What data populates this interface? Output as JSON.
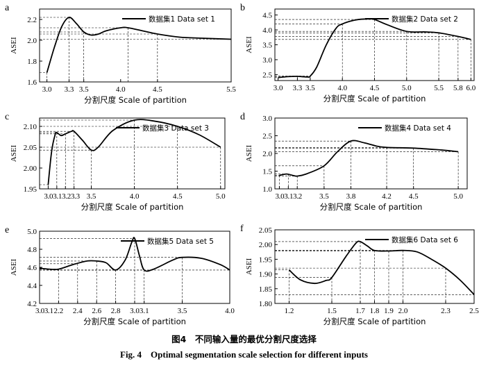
{
  "figure": {
    "caption_cn": "图4　不同输入量的最优分割尺度选择",
    "caption_en": "Fig. 4　Optimal segmentation scale selection for different inputs"
  },
  "chart_data": [
    {
      "panel_label": "a",
      "type": "line",
      "xlabel": "分割尺度 Scale of partition",
      "ylabel": "ASEI",
      "legend": "数据集1 Data set 1",
      "legend_position": "top-right",
      "xlim": [
        2.9,
        5.5
      ],
      "ylim": [
        1.6,
        2.3
      ],
      "xticks": [
        3.0,
        3.3,
        3.5,
        4.0,
        4.5,
        5.5
      ],
      "xtick_labels": [
        "3.0",
        "3.3",
        "3.5",
        "4.0",
        "4.5",
        "5.5"
      ],
      "yticks": [
        1.6,
        1.8,
        2.0,
        2.2
      ],
      "ytick_labels": [
        "1.6",
        "1.8",
        "2.0",
        "2.2"
      ],
      "curve": [
        [
          3.0,
          1.69
        ],
        [
          3.1,
          1.93
        ],
        [
          3.2,
          2.13
        ],
        [
          3.3,
          2.22
        ],
        [
          3.4,
          2.16
        ],
        [
          3.5,
          2.08
        ],
        [
          3.6,
          2.05
        ],
        [
          3.7,
          2.06
        ],
        [
          3.8,
          2.09
        ],
        [
          4.0,
          2.12
        ],
        [
          4.1,
          2.12
        ],
        [
          4.3,
          2.09
        ],
        [
          4.5,
          2.06
        ],
        [
          4.8,
          2.03
        ],
        [
          5.1,
          2.02
        ],
        [
          5.5,
          2.01
        ]
      ],
      "markers": [
        [
          3.0,
          1.69
        ],
        [
          3.3,
          2.22
        ],
        [
          3.5,
          2.08
        ],
        [
          4.1,
          2.12
        ],
        [
          4.5,
          2.06
        ],
        [
          5.5,
          2.01
        ]
      ]
    },
    {
      "panel_label": "b",
      "type": "line",
      "xlabel": "分割尺度 Scale of partition",
      "ylabel": "ASEI",
      "legend": "数据集2 Data set 2",
      "legend_position": "top-right",
      "xlim": [
        2.95,
        6.05
      ],
      "ylim": [
        2.3,
        4.7
      ],
      "xticks": [
        3.0,
        3.3,
        3.5,
        4.0,
        4.5,
        5.0,
        5.5,
        5.8,
        6.0
      ],
      "xtick_labels": [
        "3.0",
        "3.3",
        "3.5",
        "4.0",
        "4.5",
        "5.0",
        "5.5",
        "5.8",
        "6.0"
      ],
      "yticks": [
        2.5,
        3.0,
        3.5,
        4.0,
        4.5
      ],
      "ytick_labels": [
        "2.5",
        "3.0",
        "3.5",
        "4.0",
        "4.5"
      ],
      "curve": [
        [
          3.0,
          2.4
        ],
        [
          3.15,
          2.43
        ],
        [
          3.3,
          2.44
        ],
        [
          3.45,
          2.42
        ],
        [
          3.5,
          2.45
        ],
        [
          3.6,
          2.75
        ],
        [
          3.75,
          3.5
        ],
        [
          3.9,
          4.05
        ],
        [
          4.0,
          4.2
        ],
        [
          4.2,
          4.33
        ],
        [
          4.4,
          4.37
        ],
        [
          4.5,
          4.35
        ],
        [
          4.7,
          4.17
        ],
        [
          5.0,
          3.95
        ],
        [
          5.3,
          3.93
        ],
        [
          5.5,
          3.9
        ],
        [
          5.8,
          3.78
        ],
        [
          6.0,
          3.68
        ]
      ],
      "markers": [
        [
          3.0,
          2.4
        ],
        [
          3.3,
          2.44
        ],
        [
          3.5,
          2.45
        ],
        [
          4.0,
          4.2
        ],
        [
          4.5,
          4.35
        ],
        [
          5.0,
          3.95
        ],
        [
          5.5,
          3.9
        ],
        [
          5.8,
          3.78
        ],
        [
          6.0,
          3.68
        ]
      ]
    },
    {
      "panel_label": "c",
      "type": "line",
      "xlabel": "分割尺度 Scale of partition",
      "ylabel": "ASEI",
      "legend": "数据集3 Data set 3",
      "legend_position": "top-right",
      "xlim": [
        2.9,
        5.05
      ],
      "ylim": [
        1.95,
        2.12
      ],
      "xticks": [
        3.0,
        3.1,
        3.2,
        3.3,
        3.5,
        4.0,
        4.5,
        5.0
      ],
      "xtick_labels": [
        "3.0",
        "3.1",
        "3.2",
        "3.3",
        "3.5",
        "4.0",
        "4.5",
        "5.0"
      ],
      "xtick_text": "3.03.13.23.3",
      "yticks": [
        1.95,
        2.0,
        2.05,
        2.1
      ],
      "ytick_labels": [
        "1.95",
        "2.00",
        "2.05",
        "2.10"
      ],
      "curve": [
        [
          3.0,
          1.96
        ],
        [
          3.04,
          2.04
        ],
        [
          3.08,
          2.08
        ],
        [
          3.1,
          2.085
        ],
        [
          3.15,
          2.078
        ],
        [
          3.2,
          2.082
        ],
        [
          3.27,
          2.088
        ],
        [
          3.3,
          2.088
        ],
        [
          3.4,
          2.066
        ],
        [
          3.5,
          2.043
        ],
        [
          3.58,
          2.05
        ],
        [
          3.75,
          2.09
        ],
        [
          4.0,
          2.115
        ],
        [
          4.25,
          2.112
        ],
        [
          4.5,
          2.1
        ],
        [
          4.75,
          2.08
        ],
        [
          5.0,
          2.05
        ]
      ],
      "markers": [
        [
          3.0,
          1.96
        ],
        [
          3.1,
          2.085
        ],
        [
          3.2,
          2.082
        ],
        [
          3.3,
          2.088
        ],
        [
          3.5,
          2.043
        ],
        [
          4.0,
          2.115
        ],
        [
          4.5,
          2.1
        ],
        [
          5.0,
          2.05
        ]
      ]
    },
    {
      "panel_label": "d",
      "type": "line",
      "xlabel": "分割尺度 Scale of partition",
      "ylabel": "ASEI",
      "legend": "数据集4 Data set 4",
      "legend_position": "top-right",
      "xlim": [
        2.95,
        5.1
      ],
      "ylim": [
        1.0,
        3.0
      ],
      "xticks": [
        3.0,
        3.1,
        3.2,
        3.5,
        3.8,
        4.2,
        4.5,
        5.0
      ],
      "xtick_labels": [
        "3.0",
        "3.1",
        "3.2",
        "3.5",
        "3.8",
        "4.2",
        "4.5",
        "5.0"
      ],
      "xtick_text": "3.03.13.2",
      "yticks": [
        1.0,
        1.5,
        2.0,
        2.5,
        3.0
      ],
      "ytick_labels": [
        "1.0",
        "1.5",
        "2.0",
        "2.5",
        "3.0"
      ],
      "curve": [
        [
          3.0,
          1.38
        ],
        [
          3.08,
          1.42
        ],
        [
          3.15,
          1.38
        ],
        [
          3.2,
          1.36
        ],
        [
          3.3,
          1.42
        ],
        [
          3.5,
          1.65
        ],
        [
          3.65,
          2.05
        ],
        [
          3.8,
          2.35
        ],
        [
          3.95,
          2.3
        ],
        [
          4.1,
          2.2
        ],
        [
          4.2,
          2.17
        ],
        [
          4.5,
          2.15
        ],
        [
          4.8,
          2.1
        ],
        [
          5.0,
          2.05
        ]
      ],
      "markers": [
        [
          3.0,
          1.38
        ],
        [
          3.1,
          1.42
        ],
        [
          3.2,
          1.36
        ],
        [
          3.5,
          1.65
        ],
        [
          3.8,
          2.35
        ],
        [
          4.2,
          2.17
        ],
        [
          4.5,
          2.15
        ],
        [
          5.0,
          2.05
        ]
      ]
    },
    {
      "panel_label": "e",
      "type": "line",
      "xlabel": "分割尺度 Scale of partition",
      "ylabel": "ASEI",
      "legend": "数据集5 Data set 5",
      "legend_position": "top-right",
      "xlim": [
        2.0,
        4.0
      ],
      "ylim": [
        4.2,
        5.0
      ],
      "xticks": [
        2.0,
        2.2,
        2.4,
        2.6,
        2.8,
        3.0,
        3.1,
        3.5,
        4.0
      ],
      "xtick_labels": [
        "2.0",
        "2.2",
        "2.4",
        "2.6",
        "2.8",
        "3.0",
        "3.1",
        "3.5",
        "4.0"
      ],
      "xtick_text": "3.03.1",
      "yticks": [
        4.2,
        4.4,
        4.6,
        4.8,
        5.0
      ],
      "ytick_labels": [
        "4.2",
        "4.4",
        "4.6",
        "4.8",
        "5.0"
      ],
      "curve": [
        [
          2.0,
          4.59
        ],
        [
          2.1,
          4.58
        ],
        [
          2.2,
          4.58
        ],
        [
          2.35,
          4.63
        ],
        [
          2.5,
          4.67
        ],
        [
          2.6,
          4.67
        ],
        [
          2.7,
          4.65
        ],
        [
          2.8,
          4.57
        ],
        [
          2.9,
          4.68
        ],
        [
          2.97,
          4.88
        ],
        [
          3.0,
          4.92
        ],
        [
          3.05,
          4.73
        ],
        [
          3.1,
          4.57
        ],
        [
          3.2,
          4.58
        ],
        [
          3.4,
          4.68
        ],
        [
          3.5,
          4.71
        ],
        [
          3.7,
          4.7
        ],
        [
          3.9,
          4.63
        ],
        [
          4.0,
          4.57
        ]
      ],
      "markers": [
        [
          2.0,
          4.59
        ],
        [
          2.2,
          4.58
        ],
        [
          2.4,
          4.64
        ],
        [
          2.6,
          4.67
        ],
        [
          2.8,
          4.57
        ],
        [
          3.0,
          4.92
        ],
        [
          3.1,
          4.57
        ],
        [
          3.5,
          4.71
        ],
        [
          4.0,
          4.57
        ]
      ]
    },
    {
      "panel_label": "f",
      "type": "line",
      "xlabel": "分割尺度 Scale of partition",
      "ylabel": "ASEI",
      "legend": "数据集6 Data set 6",
      "legend_position": "top-right",
      "xlim": [
        1.1,
        2.5
      ],
      "ylim": [
        1.8,
        2.05
      ],
      "xticks": [
        1.2,
        1.5,
        1.7,
        1.8,
        1.9,
        2.0,
        2.3,
        2.5
      ],
      "xtick_labels": [
        "1.2",
        "1.5",
        "1.7",
        "1.8",
        "1.9",
        "2.0",
        "2.3",
        "2.5"
      ],
      "yticks": [
        1.8,
        1.85,
        1.9,
        1.95,
        2.0,
        2.05
      ],
      "ytick_labels": [
        "1.80",
        "1.85",
        "1.90",
        "1.95",
        "2.00",
        "2.05"
      ],
      "curve": [
        [
          1.2,
          1.914
        ],
        [
          1.28,
          1.88
        ],
        [
          1.38,
          1.868
        ],
        [
          1.46,
          1.878
        ],
        [
          1.5,
          1.888
        ],
        [
          1.6,
          1.96
        ],
        [
          1.67,
          2.005
        ],
        [
          1.7,
          2.01
        ],
        [
          1.75,
          1.995
        ],
        [
          1.8,
          1.98
        ],
        [
          1.9,
          1.978
        ],
        [
          2.0,
          1.98
        ],
        [
          2.1,
          1.975
        ],
        [
          2.2,
          1.95
        ],
        [
          2.3,
          1.92
        ],
        [
          2.4,
          1.88
        ],
        [
          2.5,
          1.83
        ]
      ],
      "markers": [
        [
          1.2,
          1.914
        ],
        [
          1.5,
          1.888
        ],
        [
          1.7,
          2.01
        ],
        [
          1.8,
          1.98
        ],
        [
          1.9,
          1.978
        ],
        [
          2.0,
          1.98
        ],
        [
          2.3,
          1.92
        ],
        [
          2.5,
          1.83
        ]
      ]
    }
  ]
}
